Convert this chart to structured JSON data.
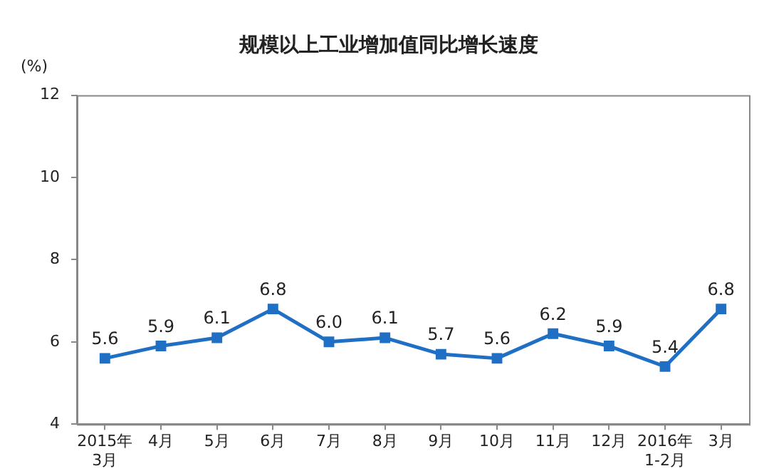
{
  "chart_data": {
    "type": "line",
    "title": "规模以上工业增加值同比增长速度",
    "ylabel": "(%)",
    "categories": [
      "2015年\n3月",
      "4月",
      "5月",
      "6月",
      "7月",
      "8月",
      "9月",
      "10月",
      "11月",
      "12月",
      "2016年\n1-2月",
      "3月"
    ],
    "series": [
      {
        "color": "#1f6fc5",
        "values": [
          5.6,
          5.9,
          6.1,
          6.8,
          6.0,
          6.1,
          5.7,
          5.6,
          6.2,
          5.9,
          5.4,
          6.8
        ],
        "value_labels": [
          "5.6",
          "5.9",
          "6.1",
          "6.8",
          "6.0",
          "6.1",
          "5.7",
          "5.6",
          "6.2",
          "5.9",
          "5.4",
          "6.8"
        ]
      }
    ],
    "ylim": [
      4,
      12
    ],
    "yticks": [
      4,
      6,
      8,
      10,
      12
    ],
    "grid": false,
    "legend": false,
    "marker": "square",
    "line_style": "solid"
  }
}
